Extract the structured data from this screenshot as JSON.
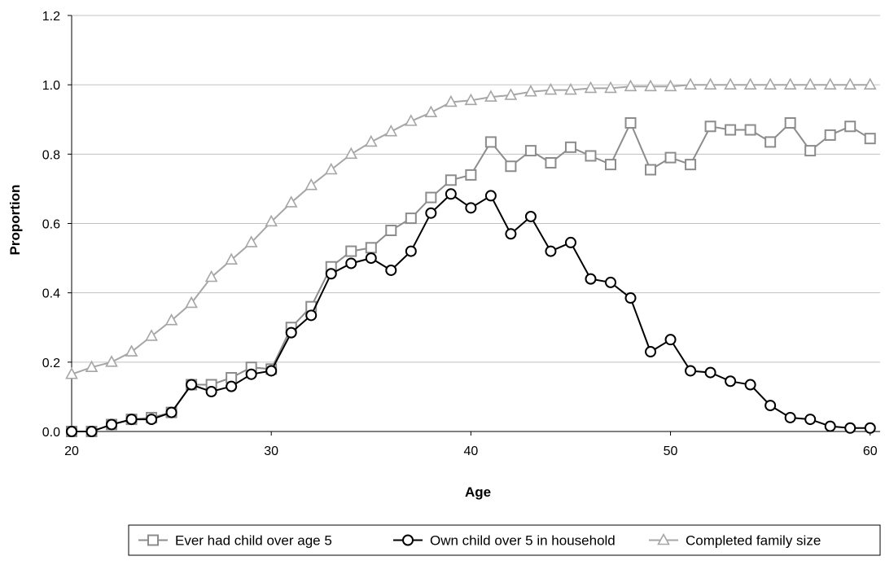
{
  "chart_data": {
    "type": "line",
    "title": "",
    "xlabel": "Age",
    "ylabel": "Proportion",
    "xlim": [
      20,
      60.5
    ],
    "ylim": [
      0,
      1.2
    ],
    "xticks": [
      "20",
      "30",
      "40",
      "50",
      "60"
    ],
    "yticks": [
      "0.0",
      "0.2",
      "0.4",
      "0.6",
      "0.8",
      "1.0",
      "1.2"
    ],
    "grid": "horizontal",
    "legend_position": "bottom",
    "x": [
      20,
      21,
      22,
      23,
      24,
      25,
      26,
      27,
      28,
      29,
      30,
      31,
      32,
      33,
      34,
      35,
      36,
      37,
      38,
      39,
      40,
      41,
      42,
      43,
      44,
      45,
      46,
      47,
      48,
      49,
      50,
      51,
      52,
      53,
      54,
      55,
      56,
      57,
      58,
      59,
      60
    ],
    "series": [
      {
        "name": "Ever had child over age 5",
        "color": "#8c8c8c",
        "marker": "square",
        "values": [
          0.0,
          0.0,
          0.02,
          0.035,
          0.04,
          0.055,
          0.135,
          0.135,
          0.155,
          0.185,
          0.18,
          0.3,
          0.36,
          0.475,
          0.52,
          0.53,
          0.58,
          0.615,
          0.675,
          0.725,
          0.74,
          0.835,
          0.765,
          0.81,
          0.775,
          0.82,
          0.795,
          0.77,
          0.89,
          0.755,
          0.79,
          0.77,
          0.88,
          0.87,
          0.87,
          0.835,
          0.89,
          0.81,
          0.855,
          0.88,
          0.845
        ]
      },
      {
        "name": "Own child over 5 in household",
        "color": "#000000",
        "marker": "circle",
        "values": [
          0.0,
          0.0,
          0.02,
          0.035,
          0.035,
          0.055,
          0.135,
          0.115,
          0.13,
          0.165,
          0.175,
          0.285,
          0.335,
          0.455,
          0.485,
          0.5,
          0.465,
          0.52,
          0.63,
          0.685,
          0.645,
          0.68,
          0.57,
          0.62,
          0.52,
          0.545,
          0.44,
          0.43,
          0.385,
          0.23,
          0.265,
          0.175,
          0.17,
          0.145,
          0.135,
          0.075,
          0.04,
          0.035,
          0.015,
          0.01,
          0.01
        ]
      },
      {
        "name": "Completed family size",
        "color": "#a6a6a6",
        "marker": "triangle",
        "values": [
          0.165,
          0.185,
          0.2,
          0.23,
          0.275,
          0.32,
          0.37,
          0.445,
          0.495,
          0.545,
          0.605,
          0.66,
          0.71,
          0.755,
          0.8,
          0.835,
          0.865,
          0.895,
          0.92,
          0.95,
          0.955,
          0.965,
          0.97,
          0.98,
          0.985,
          0.985,
          0.99,
          0.99,
          0.995,
          0.995,
          0.995,
          1.0,
          1.0,
          1.0,
          1.0,
          1.0,
          1.0,
          1.0,
          1.0,
          1.0,
          1.0
        ]
      }
    ]
  }
}
